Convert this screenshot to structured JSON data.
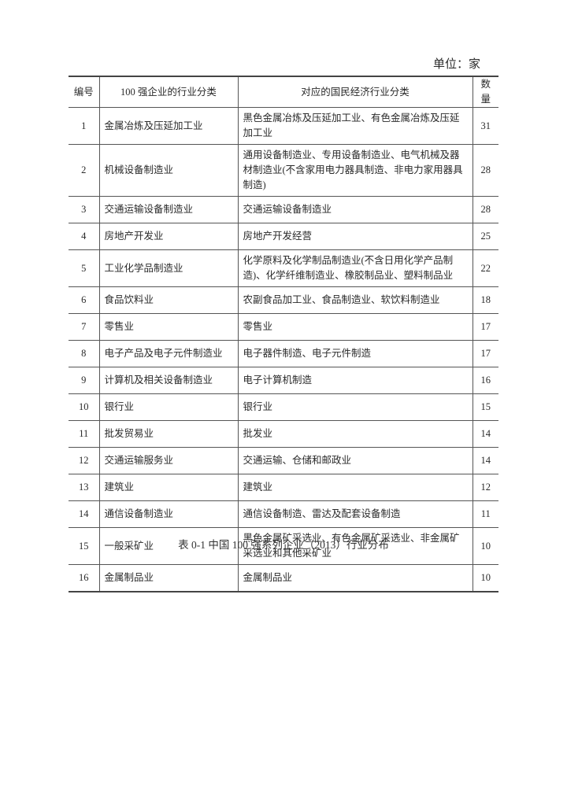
{
  "unit_label": "单位：家",
  "table": {
    "headers": [
      "编号",
      "100 强企业的行业分类",
      "对应的国民经济行业分类",
      "数量"
    ],
    "rows": [
      {
        "no": "1",
        "category": "金属冶炼及压延加工业",
        "national": "黑色金属冶炼及压延加工业、有色金属冶炼及压延加工业",
        "count": "31"
      },
      {
        "no": "2",
        "category": "机械设备制造业",
        "national": "通用设备制造业、专用设备制造业、电气机械及器材制造业(不含家用电力器具制造、非电力家用器具制造)",
        "count": "28"
      },
      {
        "no": "3",
        "category": "交通运输设备制造业",
        "national": "交通运输设备制造业",
        "count": "28"
      },
      {
        "no": "4",
        "category": "房地产开发业",
        "national": "房地产开发经营",
        "count": "25"
      },
      {
        "no": "5",
        "category": "工业化学品制造业",
        "national": "化学原料及化学制品制造业(不含日用化学产品制造)、化学纤维制造业、橡胶制品业、塑料制品业",
        "count": "22"
      },
      {
        "no": "6",
        "category": "食品饮料业",
        "national": "农副食品加工业、食品制造业、软饮料制造业",
        "count": "18"
      },
      {
        "no": "7",
        "category": "零售业",
        "national": "零售业",
        "count": "17"
      },
      {
        "no": "8",
        "category": "电子产品及电子元件制造业",
        "national": "电子器件制造、电子元件制造",
        "count": "17"
      },
      {
        "no": "9",
        "category": "计算机及相关设备制造业",
        "national": "电子计算机制造",
        "count": "16"
      },
      {
        "no": "10",
        "category": "银行业",
        "national": "银行业",
        "count": "15"
      },
      {
        "no": "11",
        "category": "批发贸易业",
        "national": "批发业",
        "count": "14"
      },
      {
        "no": "12",
        "category": "交通运输服务业",
        "national": "交通运输、仓储和邮政业",
        "count": "14"
      },
      {
        "no": "13",
        "category": "建筑业",
        "national": "建筑业",
        "count": "12"
      },
      {
        "no": "14",
        "category": "通信设备制造业",
        "national": "通信设备制造、雷达及配套设备制造",
        "count": "11"
      },
      {
        "no": "15",
        "category": "一般采矿业",
        "national": "黑色金属矿采选业、有色金属矿采选业、非金属矿采选业和其他采矿业",
        "count": "10"
      },
      {
        "no": "16",
        "category": "金属制品业",
        "national": "金属制品业",
        "count": "10"
      }
    ]
  },
  "caption": "表 0-1 中国 100 强系列企业（2013）行业分布"
}
